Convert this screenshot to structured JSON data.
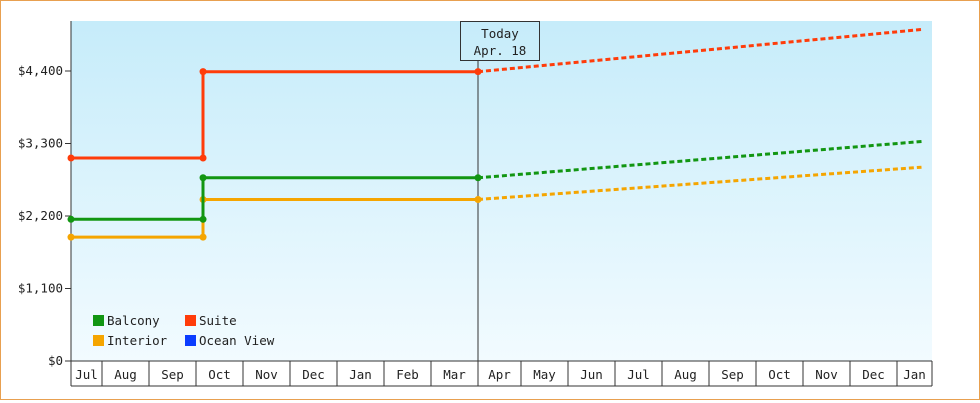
{
  "chart_data": {
    "type": "line",
    "x": [
      "Jul",
      "Aug",
      "Sep",
      "Oct",
      "Nov",
      "Dec",
      "Jan",
      "Feb",
      "Mar",
      "Apr",
      "May",
      "Jun",
      "Jul",
      "Aug",
      "Sep",
      "Oct",
      "Nov",
      "Dec",
      "Jan"
    ],
    "y_ticks": [
      "$0",
      "$1,100",
      "$2,200",
      "$3,300",
      "$4,400"
    ],
    "ylim": [
      0,
      4400
    ],
    "today": {
      "title": "Today",
      "date": "Apr. 18"
    },
    "series": [
      {
        "name": "Balcony",
        "color": "#129612",
        "actual": [
          [
            0,
            2150
          ],
          [
            3.15,
            2150
          ],
          [
            3.15,
            2780
          ],
          [
            9,
            2780
          ]
        ],
        "forecast": [
          [
            9,
            2780
          ],
          [
            18.7,
            3330
          ]
        ]
      },
      {
        "name": "Suite",
        "color": "#ff3c0a",
        "actual": [
          [
            0,
            3080
          ],
          [
            3.15,
            3080
          ],
          [
            3.15,
            4390
          ],
          [
            9,
            4390
          ]
        ],
        "forecast": [
          [
            9,
            4390
          ],
          [
            18.7,
            5030
          ]
        ]
      },
      {
        "name": "Interior",
        "color": "#f5a500",
        "actual": [
          [
            0,
            1880
          ],
          [
            3.15,
            1880
          ],
          [
            3.15,
            2450
          ],
          [
            9,
            2450
          ]
        ],
        "forecast": [
          [
            9,
            2450
          ],
          [
            18.7,
            2940
          ]
        ]
      },
      {
        "name": "Ocean View",
        "color": "#0a3cff",
        "actual": [],
        "forecast": []
      }
    ],
    "legend": "bottom-left",
    "grid": false
  }
}
